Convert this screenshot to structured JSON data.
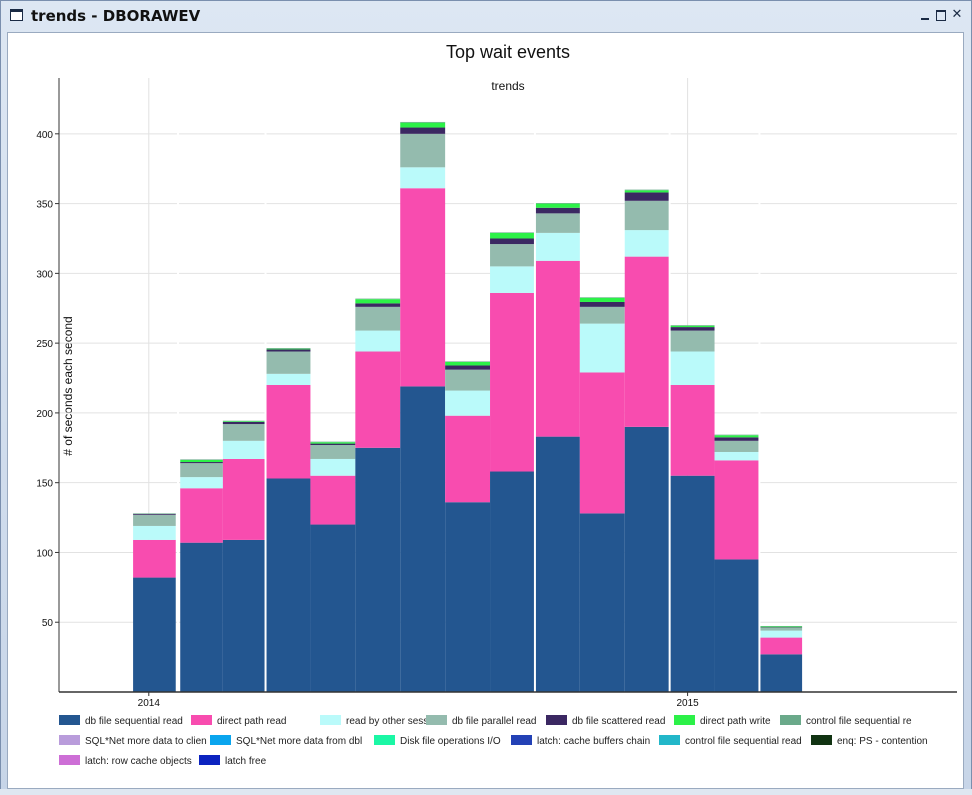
{
  "window": {
    "title": "trends - DBORAWEV",
    "minimize_label": "",
    "maximize_label": "",
    "close_label": "✕"
  },
  "colors": {
    "db file sequential read": "#235690",
    "direct path read": "#f84caf",
    "read by other session": "#bafafa",
    "db file parallel read": "#94bbae",
    "db file scattered read": "#3b2862",
    "direct path write": "#2cf148",
    "control file sequential re": "#6aa98a",
    "SQL*Net more data to clien": "#b99cdb",
    "SQL*Net more data from dbl": "#0aa5ee",
    "Disk file operations I/O": "#1bf7a5",
    "latch: cache buffers chain": "#2341b5",
    "control file sequential read": "#22b7c9",
    "enq: PS - contention": "#113312",
    "latch: row cache objects": "#cd6fd6",
    "latch free": "#0c23c0"
  },
  "chart_data": {
    "type": "bar",
    "stacked": true,
    "title": "Top wait events",
    "subtitle": "trends",
    "xlabel": "",
    "ylabel": "# of seconds each second",
    "ylim": [
      0,
      440
    ],
    "yticks": [
      50,
      100,
      150,
      200,
      250,
      300,
      350,
      400
    ],
    "xlim": [
      0,
      20
    ],
    "xtick_positions": [
      2,
      14
    ],
    "xtick_labels": [
      "2014",
      "2015"
    ],
    "grid": true,
    "bins": [
      [
        1.65,
        2.6
      ],
      [
        2.7,
        3.65
      ],
      [
        3.65,
        4.6
      ],
      [
        4.6,
        5.6
      ],
      [
        5.6,
        6.6
      ],
      [
        6.6,
        7.6
      ],
      [
        7.6,
        8.6
      ],
      [
        8.6,
        9.6
      ],
      [
        9.6,
        10.6
      ],
      [
        10.6,
        11.6
      ],
      [
        11.6,
        12.6
      ],
      [
        12.6,
        13.6
      ],
      [
        13.6,
        14.6
      ],
      [
        14.6,
        15.6
      ],
      [
        15.6,
        16.55
      ],
      [
        16.55,
        17.5
      ]
    ],
    "series": [
      {
        "name": "db file sequential read",
        "values": [
          82,
          107,
          109,
          153,
          120,
          175,
          219,
          136,
          158,
          183,
          128,
          190,
          155,
          95,
          27,
          0
        ]
      },
      {
        "name": "direct path read",
        "values": [
          27,
          39,
          58,
          67,
          35,
          69,
          142,
          62,
          128,
          126,
          101,
          122,
          65,
          71,
          12,
          0
        ]
      },
      {
        "name": "read by other session",
        "values": [
          10,
          8,
          13,
          8,
          12,
          15,
          15,
          18,
          19,
          20,
          35,
          19,
          24,
          6,
          5,
          0
        ]
      },
      {
        "name": "db file parallel read",
        "values": [
          8,
          10,
          12,
          16,
          10,
          17,
          24,
          15,
          16,
          14,
          12,
          21,
          15,
          8,
          2,
          0
        ]
      },
      {
        "name": "db file scattered read",
        "values": [
          0.6,
          0.8,
          1.5,
          1.5,
          1,
          2.5,
          4.5,
          3,
          4,
          4,
          3.5,
          6,
          2.5,
          2.5,
          0.4,
          0
        ]
      },
      {
        "name": "direct path write",
        "values": [
          0,
          1.5,
          0.5,
          0.5,
          1,
          3,
          3.5,
          2.5,
          4,
          3,
          3,
          1.5,
          1,
          1.5,
          0.5,
          0
        ]
      },
      {
        "name": "control file sequential re",
        "values": [
          0.4,
          0.4,
          0.4,
          0.5,
          0.4,
          0.4,
          0.5,
          0.4,
          0.4,
          0.4,
          0.4,
          0.5,
          0.4,
          0.4,
          0.4,
          0
        ]
      },
      {
        "name": "SQL*Net more data to clien",
        "values": [
          0,
          0,
          0,
          0,
          0,
          0,
          0,
          0,
          0,
          0,
          0,
          0,
          0,
          0,
          0,
          0
        ]
      },
      {
        "name": "SQL*Net more data from dbl",
        "values": [
          0,
          0,
          0,
          0,
          0,
          0,
          0,
          0,
          0,
          0,
          0,
          0,
          0,
          0,
          0,
          0
        ]
      },
      {
        "name": "Disk file operations I/O",
        "values": [
          0,
          0,
          0,
          0,
          0,
          0,
          0,
          0,
          0,
          0,
          0,
          0,
          0,
          0,
          0,
          0
        ]
      },
      {
        "name": "latch: cache buffers chain",
        "values": [
          0,
          0,
          0,
          0,
          0,
          0,
          0,
          0,
          0,
          0,
          0,
          0,
          0,
          0,
          0,
          0
        ]
      },
      {
        "name": "control file sequential read",
        "values": [
          0,
          0,
          0,
          0,
          0,
          0,
          0,
          0,
          0,
          0,
          0,
          0,
          0,
          0,
          0,
          0
        ]
      },
      {
        "name": "enq: PS - contention",
        "values": [
          0,
          0,
          0,
          0,
          0,
          0,
          0,
          0,
          0,
          0,
          0,
          0,
          0,
          0,
          0,
          0
        ]
      },
      {
        "name": "latch: row cache objects",
        "values": [
          0,
          0,
          0,
          0,
          0,
          0,
          0,
          0,
          0,
          0,
          0,
          0,
          0,
          0,
          0,
          0
        ]
      },
      {
        "name": "latch free",
        "values": [
          0,
          0,
          0,
          0,
          0,
          0,
          0,
          0,
          0,
          0,
          0,
          0,
          0,
          0,
          0,
          0
        ]
      }
    ],
    "separators": [
      2.65,
      4.6,
      10.6,
      13.6,
      15.6
    ],
    "legend": [
      "db file sequential read",
      "direct path read",
      "read by other session",
      "db file parallel read",
      "db file scattered read",
      "direct path write",
      "control file sequential re",
      "SQL*Net more data to clien",
      "SQL*Net more data from dbl",
      "Disk file operations I/O",
      "latch: cache buffers chain",
      "control file sequential read",
      "enq: PS - contention",
      "latch: row cache objects",
      "latch free"
    ],
    "legend_position": "bottom"
  }
}
